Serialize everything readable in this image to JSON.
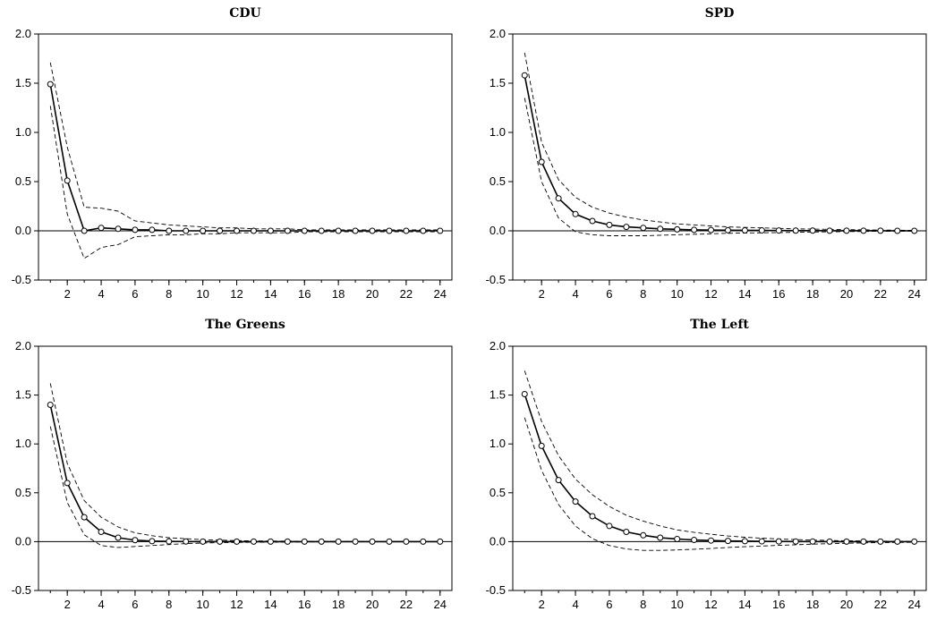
{
  "chart_data": [
    {
      "type": "line",
      "title": "CDU",
      "x": [
        1,
        2,
        3,
        4,
        5,
        6,
        7,
        8,
        9,
        10,
        11,
        12,
        13,
        14,
        15,
        16,
        17,
        18,
        19,
        20,
        21,
        22,
        23,
        24
      ],
      "xticks": [
        2,
        4,
        6,
        8,
        10,
        12,
        14,
        16,
        18,
        20,
        22,
        24
      ],
      "ylim": [
        -0.5,
        2.0
      ],
      "yticks": [
        "-0.5",
        "0.0",
        "0.5",
        "1.0",
        "1.5",
        "2.0"
      ],
      "grid": false,
      "series": [
        {
          "role": "response",
          "values": [
            1.49,
            0.51,
            0.0,
            0.03,
            0.02,
            0.01,
            0.01,
            0.0,
            0.0,
            0.0,
            0.0,
            0.0,
            0.0,
            0.0,
            0.0,
            0.0,
            0.0,
            0.0,
            0.0,
            0.0,
            0.0,
            0.0,
            0.0,
            0.0
          ]
        },
        {
          "role": "upper",
          "values": [
            1.71,
            0.85,
            0.24,
            0.23,
            0.2,
            0.1,
            0.08,
            0.06,
            0.05,
            0.04,
            0.03,
            0.03,
            0.02,
            0.02,
            0.02,
            0.01,
            0.01,
            0.01,
            0.01,
            0.01,
            0.01,
            0.01,
            0.01,
            0.01
          ]
        },
        {
          "role": "lower",
          "values": [
            1.27,
            0.17,
            -0.28,
            -0.17,
            -0.14,
            -0.06,
            -0.05,
            -0.04,
            -0.04,
            -0.03,
            -0.03,
            -0.02,
            -0.02,
            -0.02,
            -0.02,
            -0.01,
            -0.01,
            -0.01,
            -0.01,
            -0.01,
            -0.01,
            -0.01,
            -0.01,
            -0.01
          ]
        }
      ]
    },
    {
      "type": "line",
      "title": "SPD",
      "x": [
        1,
        2,
        3,
        4,
        5,
        6,
        7,
        8,
        9,
        10,
        11,
        12,
        13,
        14,
        15,
        16,
        17,
        18,
        19,
        20,
        21,
        22,
        23,
        24
      ],
      "xticks": [
        2,
        4,
        6,
        8,
        10,
        12,
        14,
        16,
        18,
        20,
        22,
        24
      ],
      "ylim": [
        -0.5,
        2.0
      ],
      "yticks": [
        "-0.5",
        "0.0",
        "0.5",
        "1.0",
        "1.5",
        "2.0"
      ],
      "grid": false,
      "series": [
        {
          "role": "response",
          "values": [
            1.58,
            0.7,
            0.33,
            0.17,
            0.1,
            0.06,
            0.04,
            0.03,
            0.02,
            0.015,
            0.01,
            0.008,
            0.006,
            0.005,
            0.004,
            0.003,
            0.002,
            0.002,
            0.001,
            0.001,
            0.001,
            0.001,
            0.0,
            0.0
          ]
        },
        {
          "role": "upper",
          "values": [
            1.81,
            0.9,
            0.52,
            0.34,
            0.24,
            0.18,
            0.14,
            0.11,
            0.09,
            0.07,
            0.06,
            0.05,
            0.04,
            0.035,
            0.03,
            0.025,
            0.02,
            0.018,
            0.015,
            0.012,
            0.01,
            0.008,
            0.006,
            0.005
          ]
        },
        {
          "role": "lower",
          "values": [
            1.35,
            0.5,
            0.13,
            -0.01,
            -0.04,
            -0.05,
            -0.05,
            -0.05,
            -0.045,
            -0.04,
            -0.035,
            -0.03,
            -0.025,
            -0.022,
            -0.02,
            -0.018,
            -0.015,
            -0.012,
            -0.01,
            -0.008,
            -0.006,
            -0.005,
            -0.004,
            -0.003
          ]
        }
      ]
    },
    {
      "type": "line",
      "title": "The Greens",
      "x": [
        1,
        2,
        3,
        4,
        5,
        6,
        7,
        8,
        9,
        10,
        11,
        12,
        13,
        14,
        15,
        16,
        17,
        18,
        19,
        20,
        21,
        22,
        23,
        24
      ],
      "xticks": [
        2,
        4,
        6,
        8,
        10,
        12,
        14,
        16,
        18,
        20,
        22,
        24
      ],
      "ylim": [
        -0.5,
        2.0
      ],
      "yticks": [
        "-0.5",
        "0.0",
        "0.5",
        "1.0",
        "1.5",
        "2.0"
      ],
      "grid": false,
      "series": [
        {
          "role": "response",
          "values": [
            1.4,
            0.6,
            0.25,
            0.1,
            0.04,
            0.015,
            0.005,
            0.002,
            0.001,
            0.0,
            0.0,
            0.0,
            0.0,
            0.0,
            0.0,
            0.0,
            0.0,
            0.0,
            0.0,
            0.0,
            0.0,
            0.0,
            0.0,
            0.0
          ]
        },
        {
          "role": "upper",
          "values": [
            1.62,
            0.8,
            0.42,
            0.25,
            0.15,
            0.09,
            0.06,
            0.04,
            0.03,
            0.02,
            0.015,
            0.01,
            0.008,
            0.006,
            0.005,
            0.004,
            0.003,
            0.002,
            0.002,
            0.001,
            0.001,
            0.001,
            0.0,
            0.0
          ]
        },
        {
          "role": "lower",
          "values": [
            1.18,
            0.4,
            0.07,
            -0.04,
            -0.06,
            -0.05,
            -0.04,
            -0.03,
            -0.02,
            -0.015,
            -0.01,
            -0.008,
            -0.006,
            -0.005,
            -0.004,
            -0.003,
            -0.002,
            -0.002,
            -0.001,
            -0.001,
            -0.001,
            0.0,
            0.0,
            0.0
          ]
        }
      ]
    },
    {
      "type": "line",
      "title": "The Left",
      "x": [
        1,
        2,
        3,
        4,
        5,
        6,
        7,
        8,
        9,
        10,
        11,
        12,
        13,
        14,
        15,
        16,
        17,
        18,
        19,
        20,
        21,
        22,
        23,
        24
      ],
      "xticks": [
        2,
        4,
        6,
        8,
        10,
        12,
        14,
        16,
        18,
        20,
        22,
        24
      ],
      "ylim": [
        -0.5,
        2.0
      ],
      "yticks": [
        "-0.5",
        "0.0",
        "0.5",
        "1.0",
        "1.5",
        "2.0"
      ],
      "grid": false,
      "series": [
        {
          "role": "response",
          "values": [
            1.51,
            0.98,
            0.63,
            0.41,
            0.26,
            0.16,
            0.1,
            0.065,
            0.04,
            0.027,
            0.017,
            0.011,
            0.007,
            0.005,
            0.003,
            0.002,
            0.001,
            0.001,
            0.0,
            0.0,
            0.0,
            0.0,
            0.0,
            0.0
          ]
        },
        {
          "role": "upper",
          "values": [
            1.75,
            1.23,
            0.88,
            0.64,
            0.48,
            0.36,
            0.27,
            0.21,
            0.16,
            0.12,
            0.095,
            0.075,
            0.058,
            0.045,
            0.035,
            0.027,
            0.021,
            0.016,
            0.012,
            0.009,
            0.007,
            0.005,
            0.004,
            0.003
          ]
        },
        {
          "role": "lower",
          "values": [
            1.27,
            0.73,
            0.38,
            0.16,
            0.03,
            -0.04,
            -0.075,
            -0.09,
            -0.09,
            -0.085,
            -0.078,
            -0.07,
            -0.06,
            -0.052,
            -0.045,
            -0.038,
            -0.032,
            -0.026,
            -0.021,
            -0.017,
            -0.013,
            -0.01,
            -0.008,
            -0.006
          ]
        }
      ]
    }
  ]
}
